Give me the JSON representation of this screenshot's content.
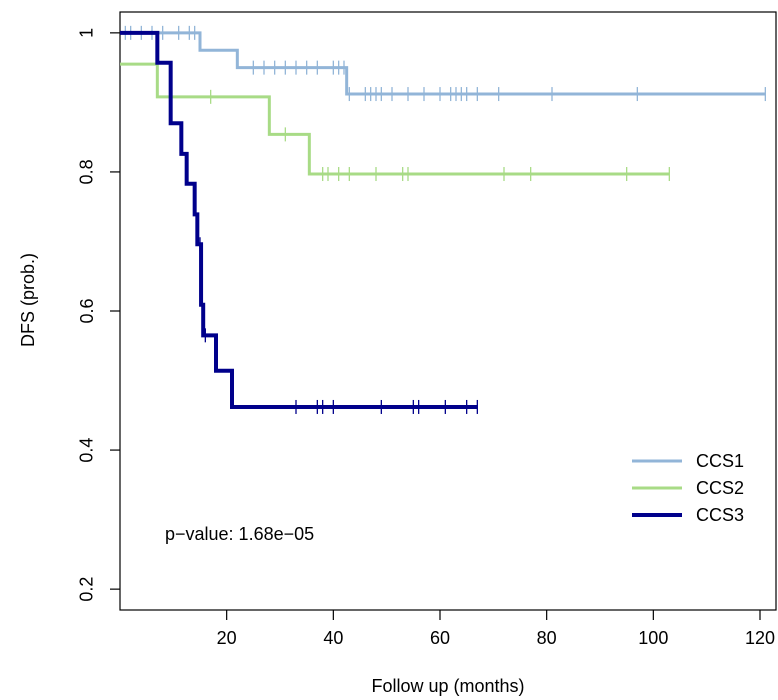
{
  "chart_data": {
    "type": "line",
    "title": "",
    "xlabel": "Follow up (months)",
    "ylabel": "DFS (prob.)",
    "xlim": [
      0,
      123
    ],
    "ylim": [
      0.17,
      1.03
    ],
    "x_ticks": [
      20,
      40,
      60,
      80,
      100,
      120
    ],
    "y_ticks": [
      0.2,
      0.4,
      0.6,
      0.8,
      1
    ],
    "x_tick_labels": [
      "20",
      "40",
      "60",
      "80",
      "100",
      "120"
    ],
    "y_tick_labels": [
      "0.2",
      "0.4",
      "0.6",
      "0.8",
      "1"
    ],
    "legend": {
      "position": "bottom-right",
      "items": [
        {
          "label": "CCS1",
          "color": "#92b5d8"
        },
        {
          "label": "CCS2",
          "color": "#a8db86"
        },
        {
          "label": "CCS3",
          "color": "#00008b"
        }
      ]
    },
    "annotation": "p−value: 1.68e−05",
    "series": [
      {
        "name": "CCS1",
        "color": "#92b5d8",
        "steps": [
          [
            0,
            1.0
          ],
          [
            15,
            0.975
          ],
          [
            22,
            0.95
          ],
          [
            42.5,
            0.912
          ],
          [
            121,
            0.912
          ]
        ],
        "censor": [
          1,
          2,
          4,
          6,
          8,
          11,
          13,
          14,
          25,
          27,
          29,
          31,
          33,
          35,
          37,
          40,
          41,
          42,
          43,
          46,
          47,
          48,
          49,
          51,
          54,
          57,
          60,
          62,
          63,
          64,
          65,
          67,
          71,
          81,
          97,
          121
        ]
      },
      {
        "name": "CCS2",
        "color": "#a8db86",
        "steps": [
          [
            0,
            0.955
          ],
          [
            7,
            0.908
          ],
          [
            28,
            0.854
          ],
          [
            35.5,
            0.797
          ],
          [
            103,
            0.797
          ]
        ],
        "censor": [
          17,
          31,
          38,
          39,
          41,
          43,
          48,
          53,
          54,
          72,
          77,
          95,
          103
        ]
      },
      {
        "name": "CCS3",
        "color": "#00008b",
        "steps": [
          [
            0,
            1.0
          ],
          [
            7,
            0.957
          ],
          [
            9.5,
            0.87
          ],
          [
            11.5,
            0.826
          ],
          [
            12.5,
            0.783
          ],
          [
            14,
            0.739
          ],
          [
            14.5,
            0.696
          ],
          [
            15.2,
            0.609
          ],
          [
            15.6,
            0.565
          ],
          [
            18,
            0.514
          ],
          [
            21,
            0.462
          ],
          [
            67,
            0.462
          ]
        ],
        "censor": [
          15,
          16,
          33,
          37,
          38,
          40,
          49,
          55,
          56,
          61,
          65,
          67
        ]
      }
    ]
  }
}
